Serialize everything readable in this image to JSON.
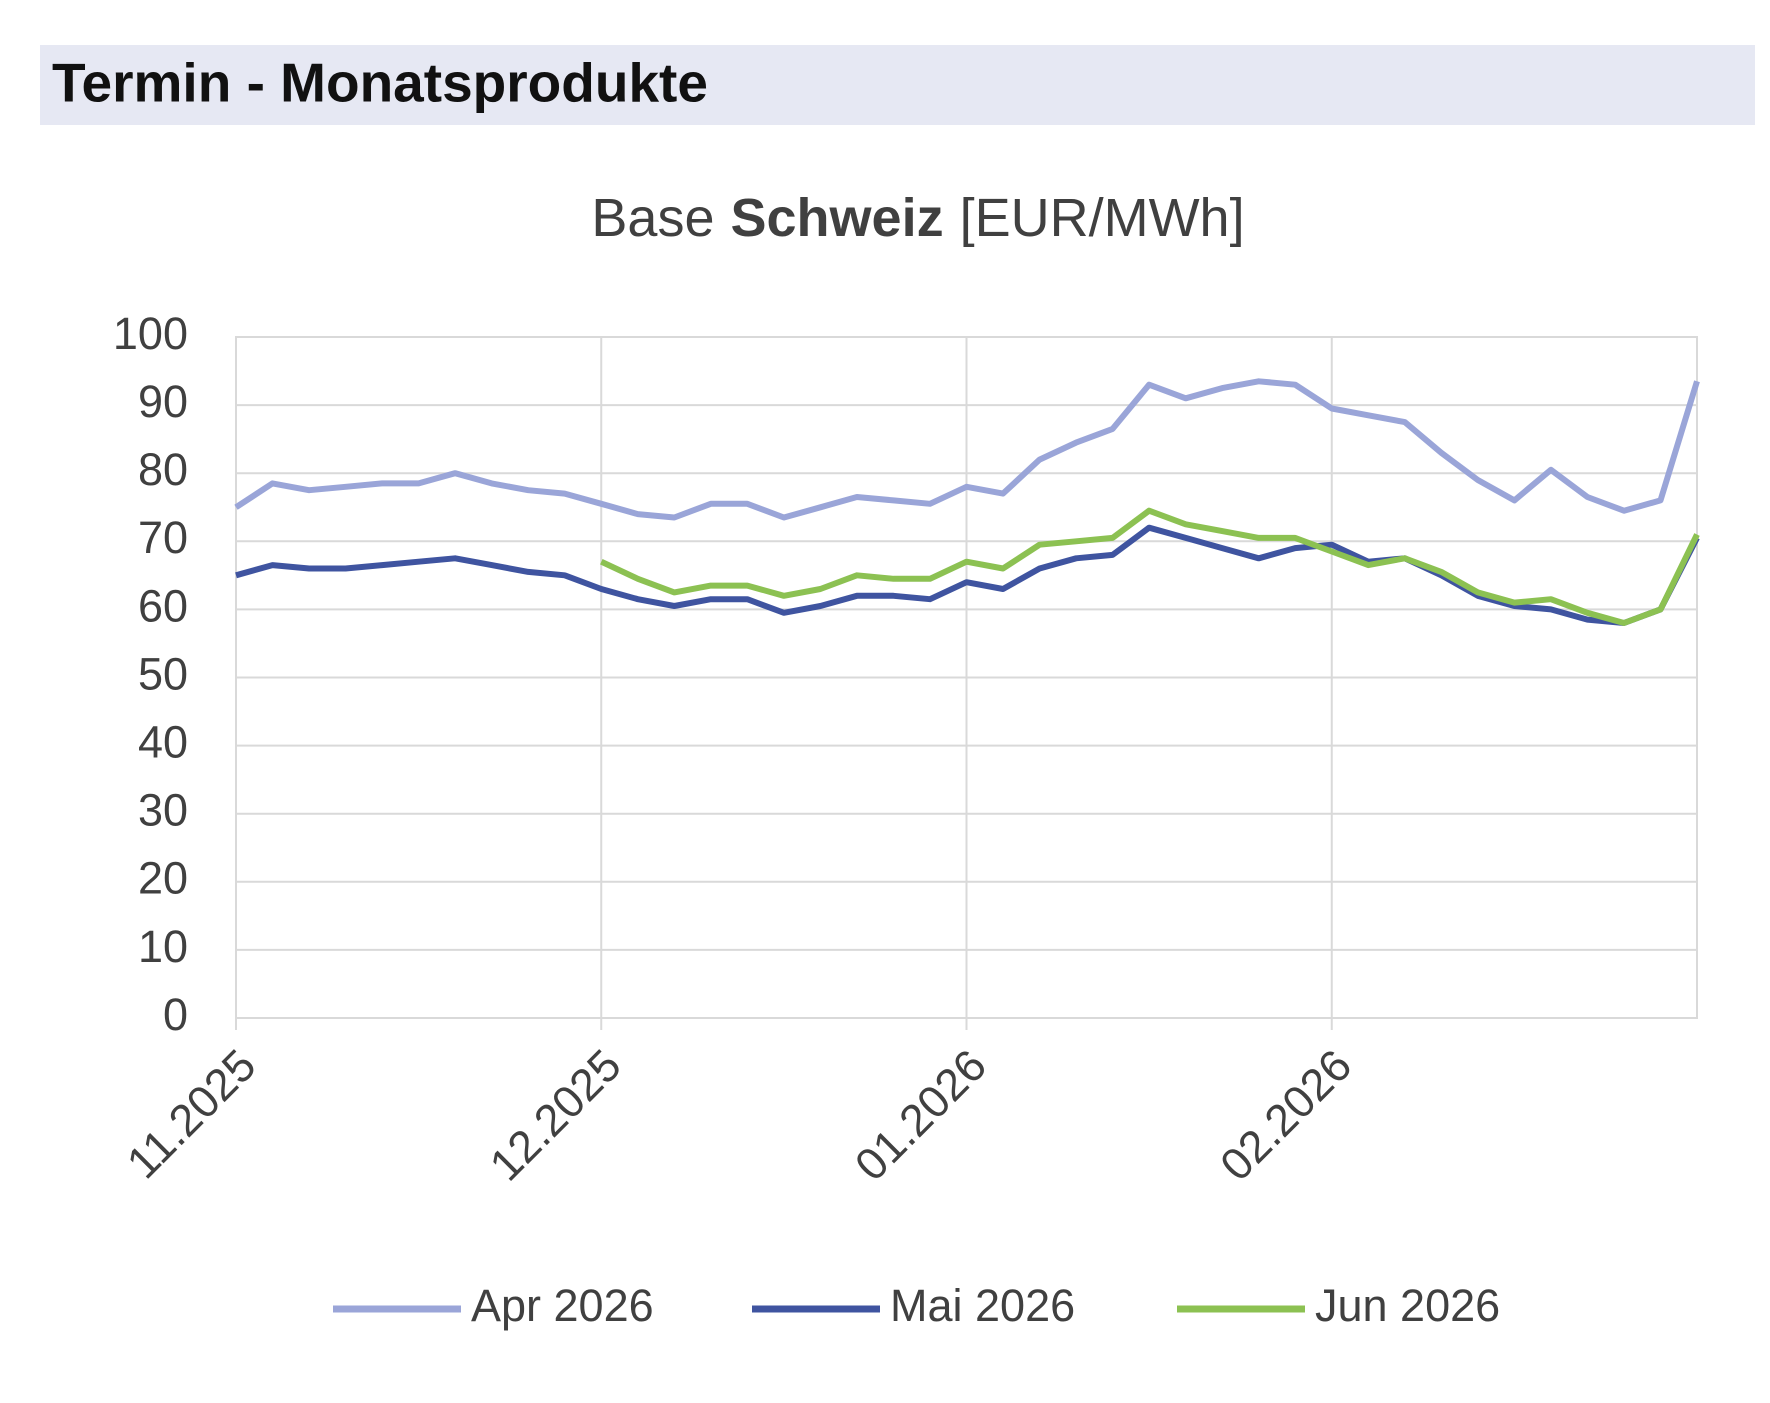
{
  "header": {
    "title": "Termin - Monatsprodukte"
  },
  "chart_data": {
    "type": "line",
    "title_parts": [
      "Base",
      "Schweiz",
      "[EUR/MWh]"
    ],
    "x": [
      0,
      0.1,
      0.2,
      0.3,
      0.4,
      0.5,
      0.6,
      0.7,
      0.8,
      0.9,
      1,
      1.1,
      1.2,
      1.3,
      1.4,
      1.5,
      1.6,
      1.7,
      1.8,
      1.9,
      2,
      2.1,
      2.2,
      2.3,
      2.4,
      2.5,
      2.6,
      2.7,
      2.8,
      2.9,
      3,
      3.1,
      3.2,
      3.3,
      3.4,
      3.5,
      3.6,
      3.7,
      3.8,
      3.9,
      4
    ],
    "xlim": [
      0,
      4
    ],
    "xticks": [
      {
        "value": 0,
        "label": "11.2025"
      },
      {
        "value": 1,
        "label": "12.2025"
      },
      {
        "value": 2,
        "label": "01.2026"
      },
      {
        "value": 3,
        "label": "02.2026"
      }
    ],
    "ylim": [
      0,
      100
    ],
    "yticks": [
      0,
      10,
      20,
      30,
      40,
      50,
      60,
      70,
      80,
      90,
      100
    ],
    "grid": true,
    "legend": "bottom",
    "series": [
      {
        "name": "Apr 2026",
        "color": "#9aa5d8",
        "values": [
          75,
          78.5,
          77.5,
          78,
          78.5,
          78.5,
          80,
          78.5,
          77.5,
          77,
          75.5,
          74,
          73.5,
          75.5,
          75.5,
          73.5,
          75,
          76.5,
          76,
          75.5,
          78,
          77,
          82,
          84.5,
          86.5,
          93,
          91,
          92.5,
          93.5,
          93,
          89.5,
          88.5,
          87.5,
          83,
          79,
          76,
          80.5,
          76.5,
          74.5,
          76,
          93.5
        ]
      },
      {
        "name": "Mai 2026",
        "color": "#3f54a0",
        "values": [
          65,
          66.5,
          66,
          66,
          66.5,
          67,
          67.5,
          66.5,
          65.5,
          65,
          63,
          61.5,
          60.5,
          61.5,
          61.5,
          59.5,
          60.5,
          62,
          62,
          61.5,
          64,
          63,
          66,
          67.5,
          68,
          72,
          70.5,
          69,
          67.5,
          69,
          69.5,
          67,
          67.5,
          65,
          62,
          60.5,
          60,
          58.5,
          58,
          60,
          70.5
        ]
      },
      {
        "name": "Jun 2026",
        "color": "#8cc152",
        "values": [
          null,
          null,
          null,
          null,
          null,
          null,
          null,
          null,
          null,
          null,
          67,
          64.5,
          62.5,
          63.5,
          63.5,
          62,
          63,
          65,
          64.5,
          64.5,
          67,
          66,
          69.5,
          70,
          70.5,
          74.5,
          72.5,
          71.5,
          70.5,
          70.5,
          68.5,
          66.5,
          67.5,
          65.5,
          62.5,
          61,
          61.5,
          59.5,
          58,
          60,
          71
        ]
      }
    ]
  }
}
